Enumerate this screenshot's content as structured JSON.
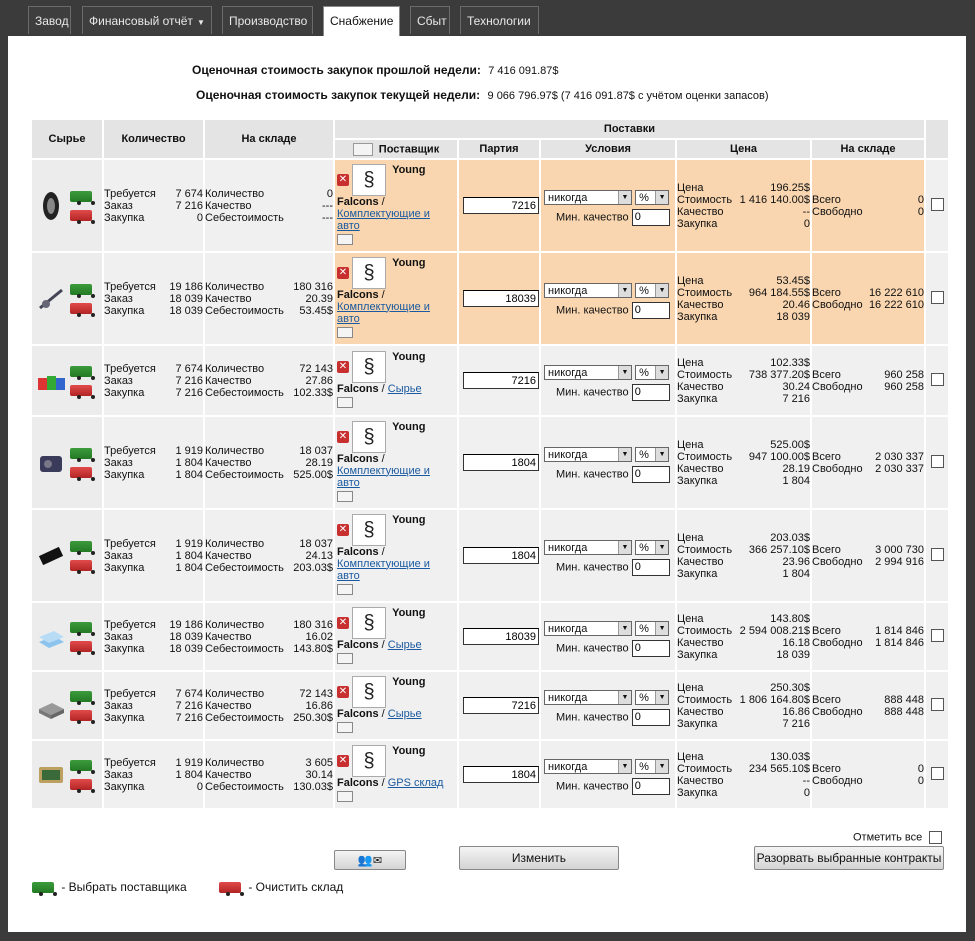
{
  "tabs": [
    {
      "label": "Завод",
      "active": false
    },
    {
      "label": "Финансовый отчёт",
      "active": false,
      "dropdown": true
    },
    {
      "label": "Производство",
      "active": false
    },
    {
      "label": "Снабжение",
      "active": true
    },
    {
      "label": "Сбыт",
      "active": false
    },
    {
      "label": "Технологии",
      "active": false
    }
  ],
  "summary": {
    "last_week_label": "Оценочная стоимость закупок прошлой недели:",
    "last_week_value": "7 416 091.87$",
    "this_week_label": "Оценочная стоимость закупок текущей недели:",
    "this_week_value": "9 066 796.97$ (7 416 091.87$ с учётом оценки запасов)"
  },
  "headers": {
    "raw": "Сырье",
    "qty": "Количество",
    "stock": "На складе",
    "supplies": "Поставки",
    "supplier": "Поставщик",
    "batch": "Партия",
    "terms": "Условия",
    "price": "Цена",
    "sup_stock": "На складе"
  },
  "labels": {
    "required": "Требуется",
    "order": "Заказ",
    "purchase": "Закупка",
    "quantity": "Количество",
    "quality": "Качество",
    "cost": "Себестоимость",
    "price": "Цена",
    "value": "Стоимость",
    "total": "Всего",
    "free": "Свободно",
    "min_quality": "Мин. качество",
    "never": "никогда",
    "pct": "%",
    "company1": "Young",
    "company2": "Falcons"
  },
  "rows": [
    {
      "item": "tire-icon",
      "req": "7 674",
      "ord": "7 216",
      "pur": "0",
      "qty": "0",
      "qual": "---",
      "cost": "---",
      "category": "Комплектующие и авто",
      "batch": "7216",
      "minq": "0",
      "price": "196.25$",
      "value": "1 416 140.00$",
      "pquality": "--",
      "ppurchase": "0",
      "total": "0",
      "free": "0",
      "highlight": true,
      "pink": true
    },
    {
      "item": "suspension-icon",
      "req": "19 186",
      "ord": "18 039",
      "pur": "18 039",
      "qty": "180 316",
      "qual": "20.39",
      "cost": "53.45$",
      "category": "Комплектующие и авто",
      "batch": "18039",
      "minq": "0",
      "price": "53.45$",
      "value": "964 184.55$",
      "pquality": "20.46",
      "ppurchase": "18 039",
      "total": "16 222 610",
      "free": "16 222 610",
      "highlight": true,
      "pink": false
    },
    {
      "item": "paint-icon",
      "req": "7 674",
      "ord": "7 216",
      "pur": "7 216",
      "qty": "72 143",
      "qual": "27.86",
      "cost": "102.33$",
      "category": "Сырье",
      "batch": "7216",
      "minq": "0",
      "price": "102.33$",
      "value": "738 377.20$",
      "pquality": "30.24",
      "ppurchase": "7 216",
      "total": "960 258",
      "free": "960 258",
      "highlight": false,
      "pink": false
    },
    {
      "item": "engine-icon",
      "req": "1 919",
      "ord": "1 804",
      "pur": "1 804",
      "qty": "18 037",
      "qual": "28.19",
      "cost": "525.00$",
      "category": "Комплектующие и авто",
      "batch": "1804",
      "minq": "0",
      "price": "525.00$",
      "value": "947 100.00$",
      "pquality": "28.19",
      "ppurchase": "1 804",
      "total": "2 030 337",
      "free": "2 030 337",
      "highlight": false,
      "pink": false
    },
    {
      "item": "chip-icon",
      "req": "1 919",
      "ord": "1 804",
      "pur": "1 804",
      "qty": "18 037",
      "qual": "24.13",
      "cost": "203.03$",
      "category": "Комплектующие и авто",
      "batch": "1804",
      "minq": "0",
      "price": "203.03$",
      "value": "366 257.10$",
      "pquality": "23.96",
      "ppurchase": "1 804",
      "total": "3 000 730",
      "free": "2 994 916",
      "highlight": false,
      "pink": false
    },
    {
      "item": "glass-icon",
      "req": "19 186",
      "ord": "18 039",
      "pur": "18 039",
      "qty": "180 316",
      "qual": "16.02",
      "cost": "143.80$",
      "category": "Сырье",
      "batch": "18039",
      "minq": "0",
      "price": "143.80$",
      "value": "2 594 008.21$",
      "pquality": "16.18",
      "ppurchase": "18 039",
      "total": "1 814 846",
      "free": "1 814 846",
      "highlight": false,
      "pink": false
    },
    {
      "item": "steel-icon",
      "req": "7 674",
      "ord": "7 216",
      "pur": "7 216",
      "qty": "72 143",
      "qual": "16.86",
      "cost": "250.30$",
      "category": "Сырье",
      "batch": "7216",
      "minq": "0",
      "price": "250.30$",
      "value": "1 806 164.80$",
      "pquality": "16.86",
      "ppurchase": "7 216",
      "total": "888 448",
      "free": "888 448",
      "highlight": false,
      "pink": false
    },
    {
      "item": "gps-icon",
      "req": "1 919",
      "ord": "1 804",
      "pur": "0",
      "qty": "3 605",
      "qual": "30.14",
      "cost": "130.03$",
      "category": "GPS склад",
      "batch": "1804",
      "minq": "0",
      "price": "130.03$",
      "value": "234 565.10$",
      "pquality": "--",
      "ppurchase": "0",
      "total": "0",
      "free": "0",
      "highlight": false,
      "pink": true
    }
  ],
  "footer": {
    "mark_all": "Отметить все",
    "change_button": "Изменить",
    "break_button": "Разорвать выбранные контракты",
    "legend_select": "- Выбрать поставщика",
    "legend_clear": "- Очистить склад"
  },
  "colors": {
    "highlight": "#f9d6b0",
    "pink": "#f3a2a2",
    "link": "#1a5aa0"
  }
}
